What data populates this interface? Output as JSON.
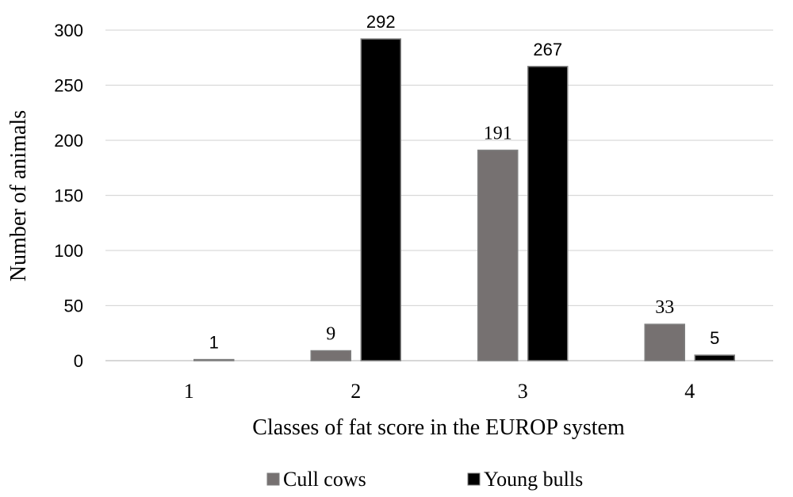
{
  "chart_data": {
    "type": "bar",
    "categories": [
      "1",
      "2",
      "3",
      "4"
    ],
    "series": [
      {
        "name": "Cull cows",
        "values": [
          0,
          9,
          191,
          33
        ],
        "labels": [
          "",
          "9",
          "191",
          "33"
        ],
        "color": "#767171"
      },
      {
        "name": "Young bulls",
        "values": [
          1,
          292,
          267,
          5
        ],
        "labels": [
          "1",
          "292",
          "267",
          "5"
        ],
        "color": "#000000"
      }
    ],
    "xlabel": "Classes of fat score in the EUROP system",
    "ylabel": "Number of animals",
    "ylim": [
      0,
      300
    ],
    "yticks": [
      "0",
      "50",
      "100",
      "150",
      "200",
      "250",
      "300"
    ],
    "grid": true,
    "legend": "bottom"
  }
}
